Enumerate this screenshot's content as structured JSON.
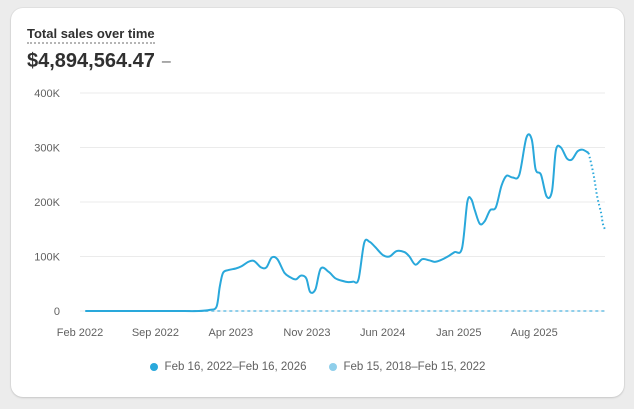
{
  "card": {
    "title": "Total sales over time",
    "total": "$4,894,564.47",
    "change": "–"
  },
  "colors": {
    "current": "#29a8db",
    "previous": "#8fcfeb",
    "grid": "#ebebeb"
  },
  "chart_data": {
    "type": "line",
    "title": "Total sales over time",
    "xlabel": "",
    "ylabel": "",
    "x_ticks": [
      "Feb 2022",
      "Sep 2022",
      "Apr 2023",
      "Nov 2023",
      "Jun 2024",
      "Jan 2025",
      "Aug 2025"
    ],
    "y_ticks": [
      "0",
      "100K",
      "200K",
      "300K",
      "400K"
    ],
    "ylim": [
      0,
      400000
    ],
    "grid": true,
    "legend_position": "bottom",
    "series": [
      {
        "name": "Feb 16, 2022–Feb 16, 2026",
        "dashed_tail": true,
        "x": [
          "2022-02-16",
          "2022-03-01",
          "2022-05-01",
          "2022-07-01",
          "2022-09-01",
          "2022-11-01",
          "2023-01-01",
          "2023-02-01",
          "2023-02-20",
          "2023-03-01",
          "2023-03-10",
          "2023-03-25",
          "2023-04-15",
          "2023-05-01",
          "2023-05-20",
          "2023-06-05",
          "2023-06-25",
          "2023-07-10",
          "2023-07-25",
          "2023-08-10",
          "2023-08-30",
          "2023-09-15",
          "2023-10-01",
          "2023-10-15",
          "2023-10-30",
          "2023-11-10",
          "2023-11-25",
          "2023-12-10",
          "2024-01-01",
          "2024-01-20",
          "2024-02-10",
          "2024-02-25",
          "2024-03-10",
          "2024-03-25",
          "2024-04-10",
          "2024-04-25",
          "2024-05-10",
          "2024-06-01",
          "2024-06-20",
          "2024-07-10",
          "2024-08-01",
          "2024-08-15",
          "2024-09-01",
          "2024-09-20",
          "2024-10-10",
          "2024-10-25",
          "2024-11-10",
          "2024-12-01",
          "2024-12-20",
          "2025-01-10",
          "2025-01-25",
          "2025-02-05",
          "2025-02-15",
          "2025-03-01",
          "2025-03-15",
          "2025-03-30",
          "2025-04-15",
          "2025-05-01",
          "2025-05-15",
          "2025-06-01",
          "2025-06-20",
          "2025-07-10",
          "2025-07-25",
          "2025-08-05",
          "2025-08-20",
          "2025-09-05",
          "2025-09-20",
          "2025-10-01",
          "2025-10-15",
          "2025-11-01",
          "2025-11-15",
          "2025-12-01",
          "2025-12-15",
          "2026-01-01",
          "2026-01-15",
          "2026-01-25",
          "2026-02-05",
          "2026-02-10",
          "2026-02-16"
        ],
        "values": [
          0,
          0,
          0,
          0,
          0,
          0,
          0,
          2000,
          8000,
          45000,
          70000,
          75000,
          78000,
          82000,
          90000,
          92000,
          80000,
          80000,
          98000,
          95000,
          70000,
          62000,
          58000,
          65000,
          60000,
          35000,
          40000,
          78000,
          72000,
          60000,
          55000,
          53000,
          54000,
          58000,
          125000,
          127000,
          118000,
          103000,
          100000,
          110000,
          108000,
          100000,
          85000,
          95000,
          93000,
          90000,
          93000,
          100000,
          108000,
          115000,
          200000,
          205000,
          185000,
          160000,
          165000,
          185000,
          190000,
          230000,
          248000,
          245000,
          250000,
          318000,
          315000,
          260000,
          250000,
          210000,
          220000,
          295000,
          300000,
          280000,
          278000,
          293000,
          296000,
          290000,
          250000,
          210000,
          180000,
          160000,
          150000
        ]
      },
      {
        "name": "Feb 15, 2018–Feb 15, 2022",
        "dashed": true,
        "x": [
          "2022-02-16",
          "2026-02-16"
        ],
        "values": [
          0,
          0
        ]
      }
    ]
  }
}
